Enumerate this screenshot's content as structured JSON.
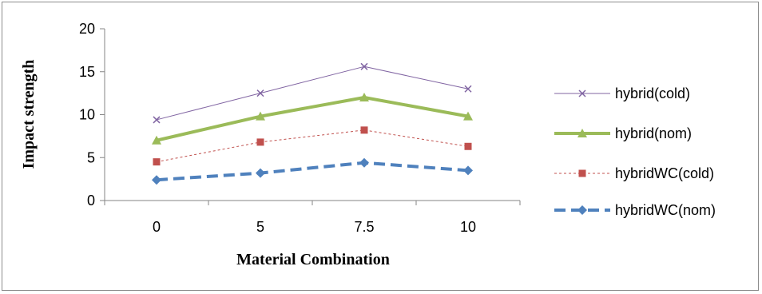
{
  "chart_data": {
    "type": "line",
    "title": "",
    "xlabel": "Material Combination",
    "ylabel": "Impact strength",
    "categories": [
      "0",
      "5",
      "7.5",
      "10"
    ],
    "ylim": [
      0,
      20
    ],
    "yticks": [
      0,
      5,
      10,
      15,
      20
    ],
    "grid": false,
    "legend": "right",
    "series": [
      {
        "name": "hybrid(cold)",
        "values": [
          9.4,
          12.5,
          15.6,
          13.0
        ],
        "color": "#8064a2",
        "marker": "x",
        "dash": "solid",
        "width": "thin"
      },
      {
        "name": "hybrid(nom)",
        "values": [
          7.0,
          9.8,
          12.0,
          9.8
        ],
        "color": "#9bbb59",
        "marker": "triangle",
        "dash": "solid",
        "width": "thick"
      },
      {
        "name": "hybridWC(cold)",
        "values": [
          4.5,
          6.8,
          8.2,
          6.3
        ],
        "color": "#c0504d",
        "marker": "square",
        "dash": "dotted",
        "width": "thin"
      },
      {
        "name": "hybridWC(nom)",
        "values": [
          2.4,
          3.2,
          4.4,
          3.5
        ],
        "color": "#4f81bd",
        "marker": "diamond",
        "dash": "dashed",
        "width": "thick"
      }
    ]
  }
}
